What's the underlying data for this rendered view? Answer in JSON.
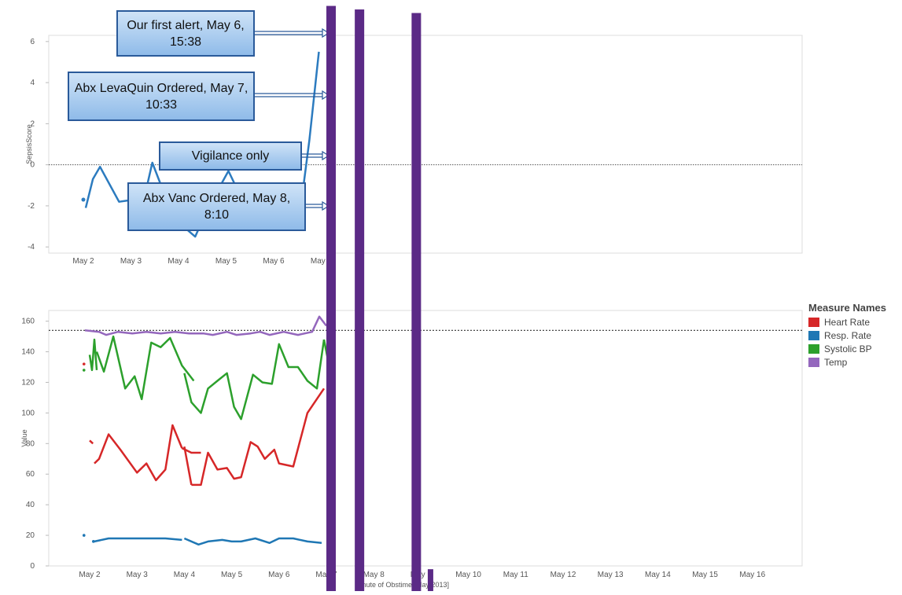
{
  "colors": {
    "heart_rate": "#d62728",
    "resp_rate": "#1f77b4",
    "systolic_bp": "#2ca02c",
    "temp": "#9467bd",
    "sepsis": "#2c7bbf",
    "overlay_bar": "#5b2a86"
  },
  "callouts": [
    {
      "text": "Our first alert, May 6, 15:38"
    },
    {
      "text": "Abx LevaQuin Ordered, May 7, 10:33"
    },
    {
      "text": "Vigilance only"
    },
    {
      "text": "Abx Vanc Ordered, May 8, 8:10"
    }
  ],
  "legend": {
    "title": "Measure Names",
    "items": [
      {
        "label": "Heart Rate",
        "color": "#d62728"
      },
      {
        "label": "Resp. Rate",
        "color": "#1f77b4"
      },
      {
        "label": "Systolic BP",
        "color": "#2ca02c"
      },
      {
        "label": "Temp",
        "color": "#9467bd"
      }
    ]
  },
  "chart_data": [
    {
      "type": "line",
      "title": "",
      "ylabel": "SepsisScore",
      "xlabel": "",
      "ylim": [
        -4.3,
        6.3
      ],
      "yticks": [
        -4,
        -2,
        0,
        2,
        4,
        6
      ],
      "xticks": [
        "May 2",
        "May 3",
        "May 4",
        "May 5",
        "May 6",
        "May 7"
      ],
      "xlim_days": [
        1.3,
        7.05
      ],
      "reference_line": 0,
      "series": [
        {
          "values_x": [
            2.05,
            2.2,
            2.35,
            2.75,
            3.05,
            3.35,
            3.45,
            3.9,
            4.35,
            4.6,
            5.05,
            5.4,
            5.85,
            6.3,
            6.6,
            6.75,
            6.95
          ],
          "values_y": [
            -2.1,
            -0.7,
            -0.1,
            -1.8,
            -1.7,
            -0.9,
            0.1,
            -2.6,
            -3.5,
            -2.2,
            -0.3,
            -2.0,
            -2.7,
            -2.3,
            -1.5,
            1.2,
            5.5
          ],
          "isolated_points": [
            {
              "x": 2.0,
              "y": -1.7
            }
          ]
        }
      ]
    },
    {
      "type": "line",
      "title": "",
      "ylabel": "Value",
      "xlabel": "Minute of Obstime [May 2013]",
      "ylim": [
        0,
        167
      ],
      "yticks": [
        0,
        20,
        40,
        60,
        80,
        100,
        120,
        140,
        160
      ],
      "xticks": [
        "May 2",
        "May 3",
        "May 4",
        "May 5",
        "May 6",
        "May 7",
        "May 8",
        "May 9",
        "May 10",
        "May 11",
        "May 12",
        "May 13",
        "May 14",
        "May 15",
        "May 16"
      ],
      "xlim_days": [
        1.3,
        17.0
      ],
      "reference_line": 154,
      "series": [
        {
          "name": "Heart Rate",
          "segments": [
            {
              "x": [
                2.0,
                2.07
              ],
              "y": [
                82,
                80
              ]
            },
            {
              "x": [
                2.1,
                2.2,
                2.4,
                2.65,
                3.0,
                3.2,
                3.4,
                3.6,
                3.75,
                3.95
              ],
              "y": [
                67,
                70,
                86,
                76,
                61,
                67,
                56,
                63,
                92,
                77
              ]
            },
            {
              "x": [
                3.95,
                4.15,
                4.35
              ],
              "y": [
                77,
                74,
                74
              ]
            },
            {
              "x": [
                4.0,
                4.15
              ],
              "y": [
                78,
                53
              ]
            },
            {
              "x": [
                4.15,
                4.35,
                4.5,
                4.7,
                4.9,
                5.05,
                5.2,
                5.4,
                5.55,
                5.7,
                5.9,
                6.0,
                6.3,
                6.6,
                6.95
              ],
              "y": [
                53,
                53,
                74,
                63,
                64,
                57,
                58,
                81,
                78,
                70,
                76,
                67,
                65,
                100,
                116
              ]
            },
            {
              "x": [
                7.05,
                7.1
              ],
              "y": [
                96,
                97
              ]
            }
          ],
          "isolated_points": [
            {
              "x": 1.88,
              "y": 132
            }
          ]
        },
        {
          "name": "Resp. Rate",
          "segments": [
            {
              "x": [
                2.1,
                2.4,
                2.8,
                3.2,
                3.6,
                3.95
              ],
              "y": [
                16,
                18,
                18,
                18,
                18,
                17
              ]
            },
            {
              "x": [
                4.0,
                4.3,
                4.5,
                4.8,
                5.0,
                5.2,
                5.5,
                5.8,
                6.0,
                6.3,
                6.6,
                6.9
              ],
              "y": [
                18,
                14,
                16,
                17,
                16,
                16,
                18,
                15,
                18,
                18,
                16,
                15
              ]
            }
          ],
          "isolated_points": [
            {
              "x": 1.88,
              "y": 20
            },
            {
              "x": 2.08,
              "y": 16
            },
            {
              "x": 7.05,
              "y": 18
            }
          ]
        },
        {
          "name": "Systolic BP",
          "segments": [
            {
              "x": [
                2.0,
                2.05,
                2.1,
                2.15
              ],
              "y": [
                138,
                128,
                148,
                128
              ]
            },
            {
              "x": [
                2.15,
                2.3,
                2.5,
                2.75,
                2.95,
                3.1,
                3.3,
                3.5,
                3.7,
                3.95,
                4.2
              ],
              "y": [
                140,
                127,
                150,
                116,
                124,
                109,
                146,
                143,
                149,
                131,
                121
              ]
            },
            {
              "x": [
                4.0,
                4.15,
                4.35,
                4.5,
                4.7,
                4.9,
                5.05,
                5.2,
                5.45,
                5.65,
                5.85,
                6.0,
                6.2,
                6.4,
                6.6,
                6.8,
                6.95
              ],
              "y": [
                126,
                107,
                100,
                116,
                121,
                126,
                104,
                96,
                125,
                120,
                119,
                145,
                130,
                130,
                121,
                116,
                148
              ]
            },
            {
              "x": [
                6.95,
                7.05
              ],
              "y": [
                148,
                132
              ]
            }
          ],
          "isolated_points": [
            {
              "x": 1.88,
              "y": 128
            },
            {
              "x": 7.05,
              "y": 126
            }
          ]
        },
        {
          "name": "Temp",
          "segments": [
            {
              "x": [
                1.9,
                2.2,
                2.35,
                2.6,
                2.9,
                3.2,
                3.5,
                3.8,
                4.1,
                4.4,
                4.6,
                4.9,
                5.1,
                5.4,
                5.6,
                5.8,
                6.1,
                6.4,
                6.7,
                6.85,
                7.0
              ],
              "y": [
                154,
                153,
                151,
                153,
                152,
                153,
                152,
                153,
                152,
                152,
                151,
                153,
                151,
                152,
                153,
                151,
                153,
                151,
                153,
                163,
                157
              ]
            }
          ]
        }
      ]
    }
  ],
  "overlay_bars": [
    {
      "x_days": 7.1,
      "top_frac": 0.01,
      "bottom_frac": 1.0
    },
    {
      "x_days": 7.7,
      "top_frac": 0.016,
      "bottom_frac": 1.0
    },
    {
      "x_days": 8.9,
      "top_frac": 0.022,
      "bottom_frac": 1.0
    },
    {
      "x_days": 9.2,
      "top_frac": 0.963,
      "bottom_frac": 1.0
    }
  ]
}
